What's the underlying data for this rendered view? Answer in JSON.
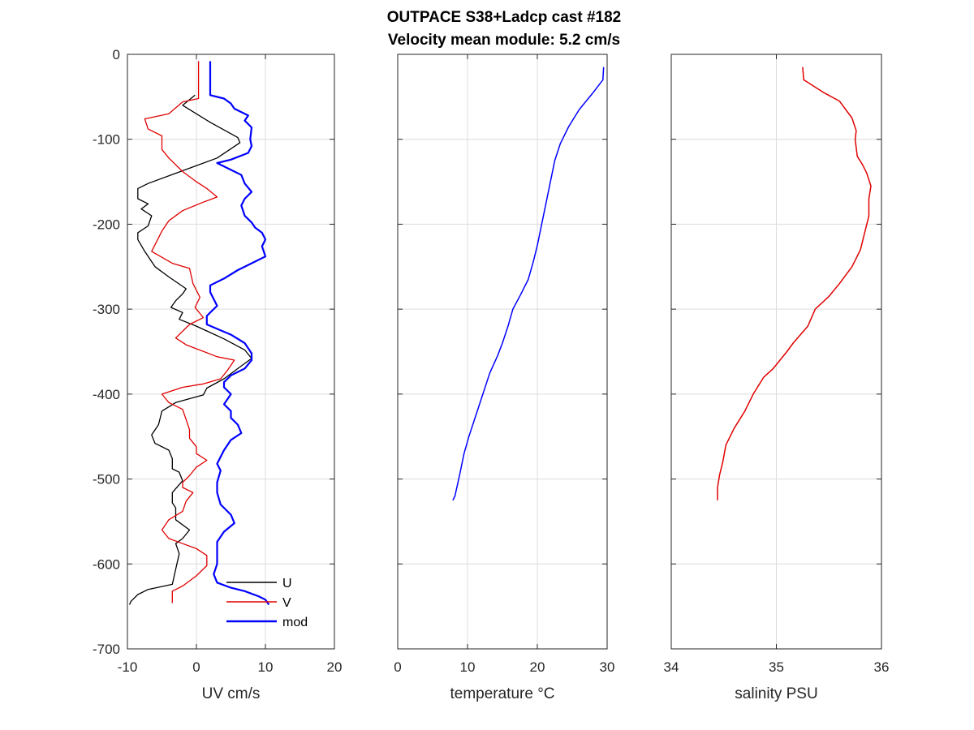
{
  "title_line1": "OUTPACE S38+Ladcp cast #182",
  "title_line2": "Velocity mean module:  5.2 cm/s",
  "chart_data": [
    {
      "type": "line",
      "xlabel": "UV cm/s",
      "ylabel": "",
      "xlim": [
        -10,
        20
      ],
      "ylim": [
        -700,
        0
      ],
      "xticks": [
        "-10",
        "0",
        "10",
        "20"
      ],
      "yticks": [
        "0",
        "-100",
        "-200",
        "-300",
        "-400",
        "-500",
        "-600",
        "-700"
      ],
      "grid": true,
      "legend_position": "bottom-right",
      "colors": {
        "U": "#000000",
        "V": "#e00000",
        "mod": "#0000ff"
      },
      "series": [
        {
          "name": "U",
          "points": [
            [
              -0.2,
              -48
            ],
            [
              -2,
              -60
            ],
            [
              2,
              -80
            ],
            [
              6,
              -98
            ],
            [
              6.3,
              -104
            ],
            [
              3,
              -122
            ],
            [
              -3,
              -140
            ],
            [
              -7,
              -152
            ],
            [
              -8.5,
              -158
            ],
            [
              -8.5,
              -170
            ],
            [
              -7,
              -176
            ],
            [
              -8,
              -182
            ],
            [
              -6.5,
              -190
            ],
            [
              -7,
              -202
            ],
            [
              -8.5,
              -210
            ],
            [
              -8.5,
              -218
            ],
            [
              -7.5,
              -232
            ],
            [
              -6,
              -250
            ],
            [
              -4,
              -262
            ],
            [
              -1.5,
              -276
            ],
            [
              -2,
              -282
            ],
            [
              -3,
              -290
            ],
            [
              -3.7,
              -298
            ],
            [
              -2,
              -304
            ],
            [
              -2.5,
              -312
            ],
            [
              0,
              -320
            ],
            [
              4,
              -335
            ],
            [
              7,
              -348
            ],
            [
              8,
              -358
            ],
            [
              6,
              -370
            ],
            [
              4,
              -382
            ],
            [
              1.5,
              -393
            ],
            [
              1,
              -401
            ],
            [
              -3,
              -410
            ],
            [
              -5,
              -420
            ],
            [
              -5.5,
              -436
            ],
            [
              -6.5,
              -448
            ],
            [
              -6,
              -458
            ],
            [
              -4,
              -466
            ],
            [
              -3.5,
              -476
            ],
            [
              -3.5,
              -488
            ],
            [
              -2.5,
              -492
            ],
            [
              -2,
              -502
            ],
            [
              -3.5,
              -516
            ],
            [
              -3.5,
              -528
            ],
            [
              -3,
              -534
            ],
            [
              -3,
              -548
            ],
            [
              -1,
              -560
            ],
            [
              -2,
              -570
            ],
            [
              -3,
              -576
            ],
            [
              -2.5,
              -588
            ],
            [
              -3,
              -606
            ],
            [
              -3.5,
              -624
            ],
            [
              -7,
              -630
            ],
            [
              -8.5,
              -636
            ],
            [
              -9.5,
              -644
            ],
            [
              -9.7,
              -648
            ]
          ]
        },
        {
          "name": "V",
          "points": [
            [
              0.3,
              -8
            ],
            [
              0.3,
              -52
            ],
            [
              -2,
              -56
            ],
            [
              -4,
              -70
            ],
            [
              -7.5,
              -76
            ],
            [
              -7,
              -88
            ],
            [
              -5,
              -96
            ],
            [
              -5,
              -112
            ],
            [
              -4,
              -122
            ],
            [
              -2,
              -138
            ],
            [
              0,
              -150
            ],
            [
              1.5,
              -158
            ],
            [
              3,
              -168
            ],
            [
              1,
              -174
            ],
            [
              -2,
              -184
            ],
            [
              -4,
              -196
            ],
            [
              -5,
              -208
            ],
            [
              -5.5,
              -216
            ],
            [
              -6.5,
              -232
            ],
            [
              -3.5,
              -246
            ],
            [
              -1,
              -252
            ],
            [
              -0.5,
              -270
            ],
            [
              0.5,
              -286
            ],
            [
              -0.2,
              -298
            ],
            [
              1,
              -310
            ],
            [
              -1,
              -318
            ],
            [
              -3,
              -334
            ],
            [
              -1.5,
              -342
            ],
            [
              3,
              -356
            ],
            [
              5.5,
              -360
            ],
            [
              4.5,
              -372
            ],
            [
              3.5,
              -382
            ],
            [
              1,
              -388
            ],
            [
              -2,
              -392
            ],
            [
              -5,
              -400
            ],
            [
              -4,
              -410
            ],
            [
              -2,
              -418
            ],
            [
              -1.5,
              -430
            ],
            [
              -1,
              -442
            ],
            [
              -1,
              -452
            ],
            [
              0,
              -462
            ],
            [
              0,
              -470
            ],
            [
              1.5,
              -478
            ],
            [
              0,
              -486
            ],
            [
              -1,
              -496
            ],
            [
              -2,
              -504
            ],
            [
              -2,
              -510
            ],
            [
              -0.5,
              -516
            ],
            [
              -1.5,
              -526
            ],
            [
              -2,
              -538
            ],
            [
              -4,
              -548
            ],
            [
              -5,
              -560
            ],
            [
              -4,
              -570
            ],
            [
              -2,
              -576
            ],
            [
              0,
              -582
            ],
            [
              1.5,
              -590
            ],
            [
              1.5,
              -602
            ],
            [
              0,
              -614
            ],
            [
              -2,
              -626
            ],
            [
              -3.5,
              -632
            ],
            [
              -3.5,
              -646
            ]
          ]
        },
        {
          "name": "mod",
          "points": [
            [
              2,
              -8
            ],
            [
              2,
              -48
            ],
            [
              4,
              -52
            ],
            [
              5,
              -58
            ],
            [
              5.5,
              -64
            ],
            [
              7.5,
              -72
            ],
            [
              7,
              -78
            ],
            [
              8,
              -86
            ],
            [
              7.8,
              -100
            ],
            [
              8,
              -108
            ],
            [
              7.5,
              -116
            ],
            [
              5,
              -124
            ],
            [
              3,
              -128
            ],
            [
              5,
              -136
            ],
            [
              6.5,
              -142
            ],
            [
              7,
              -152
            ],
            [
              8,
              -162
            ],
            [
              7,
              -170
            ],
            [
              6.5,
              -178
            ],
            [
              7,
              -190
            ],
            [
              8,
              -198
            ],
            [
              8.5,
              -204
            ],
            [
              9.5,
              -210
            ],
            [
              10,
              -218
            ],
            [
              9.5,
              -226
            ],
            [
              10,
              -238
            ],
            [
              8,
              -246
            ],
            [
              6,
              -254
            ],
            [
              4,
              -264
            ],
            [
              2,
              -272
            ],
            [
              2,
              -280
            ],
            [
              3,
              -296
            ],
            [
              2.5,
              -300
            ],
            [
              1.5,
              -308
            ],
            [
              1.5,
              -318
            ],
            [
              5,
              -330
            ],
            [
              7,
              -340
            ],
            [
              8,
              -352
            ],
            [
              8,
              -360
            ],
            [
              7,
              -370
            ],
            [
              5,
              -378
            ],
            [
              4,
              -386
            ],
            [
              4,
              -392
            ],
            [
              5,
              -400
            ],
            [
              4,
              -412
            ],
            [
              5,
              -420
            ],
            [
              5,
              -428
            ],
            [
              6,
              -436
            ],
            [
              6.5,
              -446
            ],
            [
              5,
              -454
            ],
            [
              4,
              -466
            ],
            [
              3.5,
              -474
            ],
            [
              3,
              -482
            ],
            [
              3.5,
              -490
            ],
            [
              3,
              -504
            ],
            [
              3,
              -516
            ],
            [
              3.5,
              -530
            ],
            [
              5,
              -542
            ],
            [
              5.5,
              -552
            ],
            [
              4,
              -562
            ],
            [
              3,
              -574
            ],
            [
              3,
              -588
            ],
            [
              3,
              -600
            ],
            [
              2.5,
              -612
            ],
            [
              3,
              -622
            ],
            [
              5,
              -628
            ],
            [
              7,
              -632
            ],
            [
              9,
              -638
            ],
            [
              10,
              -642
            ],
            [
              10.5,
              -648
            ]
          ]
        }
      ]
    },
    {
      "type": "line",
      "xlabel": "temperature °C",
      "ylabel": "",
      "xlim": [
        0,
        30
      ],
      "ylim": [
        -700,
        0
      ],
      "xticks": [
        "0",
        "10",
        "20",
        "30"
      ],
      "grid": true,
      "colors": {
        "temperature": "#0000ff"
      },
      "series": [
        {
          "points": [
            [
              29.5,
              -15
            ],
            [
              29.4,
              -30
            ],
            [
              28,
              -45
            ],
            [
              26,
              -65
            ],
            [
              24.5,
              -85
            ],
            [
              23.3,
              -105
            ],
            [
              22.5,
              -125
            ],
            [
              22,
              -145
            ],
            [
              21.5,
              -165
            ],
            [
              21,
              -185
            ],
            [
              20.5,
              -205
            ],
            [
              20,
              -225
            ],
            [
              19.4,
              -245
            ],
            [
              18.7,
              -265
            ],
            [
              17.6,
              -283
            ],
            [
              16.5,
              -300
            ],
            [
              15.8,
              -320
            ],
            [
              15,
              -340
            ],
            [
              14.3,
              -355
            ],
            [
              13.2,
              -375
            ],
            [
              12.2,
              -400
            ],
            [
              11.2,
              -425
            ],
            [
              10.2,
              -450
            ],
            [
              9.5,
              -470
            ],
            [
              9,
              -490
            ],
            [
              8.6,
              -505
            ],
            [
              8.2,
              -520
            ],
            [
              7.9,
              -525
            ]
          ]
        }
      ]
    },
    {
      "type": "line",
      "xlabel": "salinity PSU",
      "ylabel": "",
      "xlim": [
        34,
        36
      ],
      "ylim": [
        -700,
        0
      ],
      "xticks": [
        "34",
        "35",
        "36"
      ],
      "grid": true,
      "colors": {
        "salinity": "#e00000"
      },
      "series": [
        {
          "points": [
            [
              35.25,
              -15
            ],
            [
              35.26,
              -30
            ],
            [
              35.45,
              -45
            ],
            [
              35.6,
              -55
            ],
            [
              35.72,
              -75
            ],
            [
              35.76,
              -90
            ],
            [
              35.75,
              -100
            ],
            [
              35.77,
              -120
            ],
            [
              35.82,
              -130
            ],
            [
              35.86,
              -140
            ],
            [
              35.9,
              -155
            ],
            [
              35.88,
              -170
            ],
            [
              35.88,
              -190
            ],
            [
              35.84,
              -210
            ],
            [
              35.8,
              -230
            ],
            [
              35.72,
              -250
            ],
            [
              35.6,
              -270
            ],
            [
              35.5,
              -285
            ],
            [
              35.37,
              -300
            ],
            [
              35.3,
              -320
            ],
            [
              35.16,
              -340
            ],
            [
              35.1,
              -350
            ],
            [
              34.97,
              -370
            ],
            [
              34.88,
              -380
            ],
            [
              34.78,
              -400
            ],
            [
              34.7,
              -420
            ],
            [
              34.6,
              -440
            ],
            [
              34.52,
              -460
            ],
            [
              34.49,
              -480
            ],
            [
              34.46,
              -495
            ],
            [
              34.44,
              -510
            ],
            [
              34.44,
              -525
            ]
          ]
        }
      ]
    }
  ]
}
